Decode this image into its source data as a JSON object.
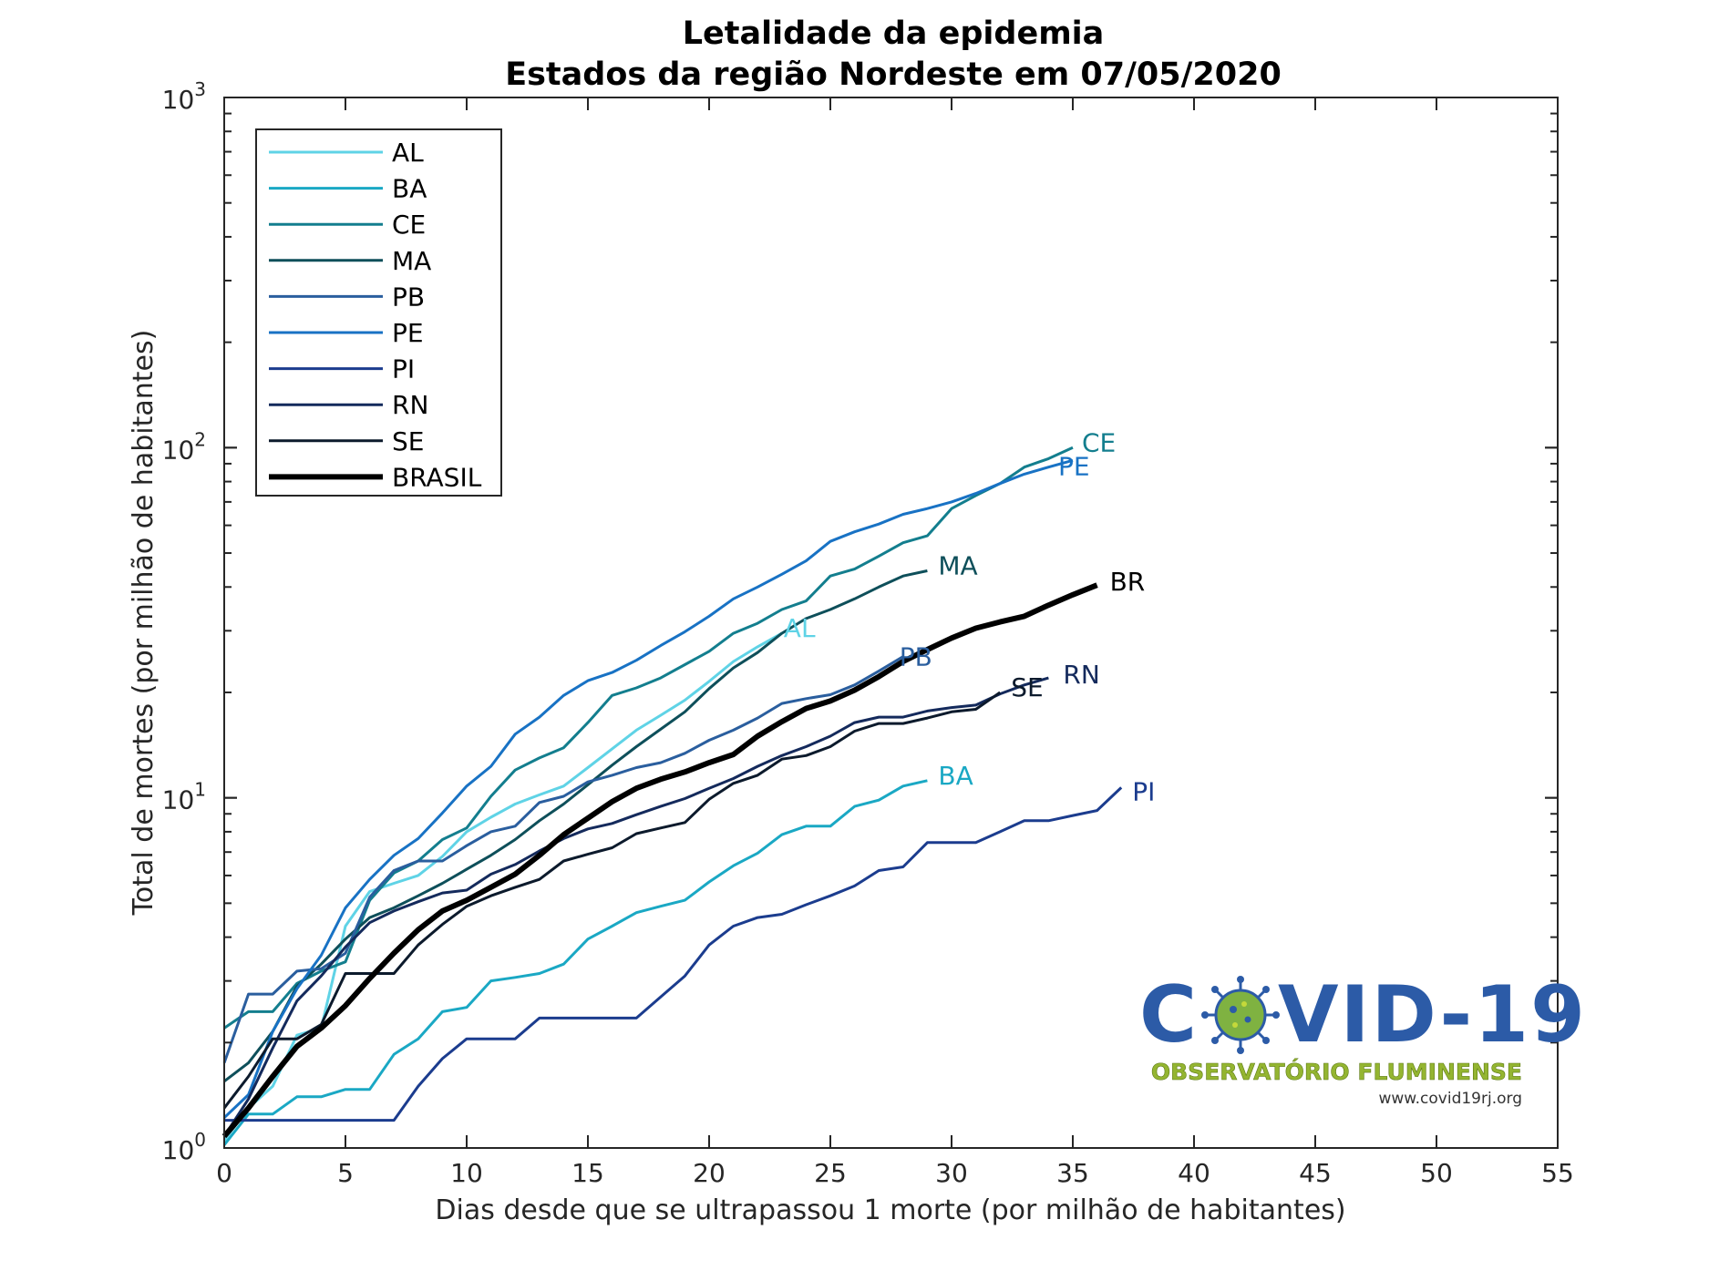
{
  "chart_data": {
    "type": "line",
    "title": "Letalidade da epidemia",
    "subtitle": "Estados da região Nordeste em 07/05/2020",
    "xlabel": "Dias desde que se ultrapassou 1 morte (por milhão de habitantes)",
    "ylabel": "Total de mortes (por milhão de habitantes)",
    "xlim": [
      0,
      55
    ],
    "ylim": [
      1,
      1000
    ],
    "yscale": "log",
    "xticks": [
      "0",
      "5",
      "10",
      "15",
      "20",
      "25",
      "30",
      "35",
      "40",
      "45",
      "50",
      "55"
    ],
    "yticks": [
      {
        "base": "10",
        "exp": "0"
      },
      {
        "base": "10",
        "exp": "1"
      },
      {
        "base": "10",
        "exp": "2"
      },
      {
        "base": "10",
        "exp": "3"
      }
    ],
    "grid": false,
    "legend_position": "top-left",
    "series": [
      {
        "name": "AL",
        "end_label": "AL",
        "color": "#5fd3e6",
        "width": 3,
        "x": [
          0,
          1,
          2,
          3,
          4,
          5,
          6,
          7,
          8,
          9,
          10,
          11,
          12,
          13,
          14,
          15,
          16,
          17,
          18,
          19,
          20,
          21,
          22,
          23
        ],
        "y": [
          1.05,
          1.3,
          1.5,
          2.1,
          2.2,
          4.3,
          5.4,
          5.7,
          6.0,
          6.8,
          8.0,
          8.8,
          9.6,
          10.2,
          10.8,
          12.2,
          13.8,
          15.6,
          17.2,
          19.0,
          21.5,
          24.5,
          27.0,
          29.5
        ]
      },
      {
        "name": "BA",
        "end_label": "BA",
        "color": "#1aa8c4",
        "width": 3,
        "x": [
          0,
          1,
          2,
          3,
          4,
          5,
          6,
          7,
          8,
          9,
          10,
          11,
          12,
          13,
          14,
          15,
          16,
          17,
          18,
          19,
          20,
          21,
          22,
          23,
          24,
          25,
          26,
          27,
          28,
          29
        ],
        "y": [
          1.02,
          1.25,
          1.25,
          1.4,
          1.4,
          1.47,
          1.47,
          1.85,
          2.05,
          2.45,
          2.52,
          3.0,
          3.07,
          3.15,
          3.35,
          3.95,
          4.3,
          4.7,
          4.9,
          5.1,
          5.75,
          6.4,
          6.95,
          7.85,
          8.3,
          8.3,
          9.45,
          9.85,
          10.8,
          11.2
        ]
      },
      {
        "name": "CE",
        "end_label": "CE",
        "color": "#137e8e",
        "width": 3,
        "x": [
          0,
          1,
          2,
          3,
          4,
          5,
          6,
          7,
          8,
          9,
          10,
          11,
          12,
          13,
          14,
          15,
          16,
          17,
          18,
          19,
          20,
          21,
          22,
          23,
          24,
          25,
          26,
          27,
          28,
          29,
          30,
          31,
          32,
          33,
          34,
          35
        ],
        "y": [
          2.2,
          2.45,
          2.45,
          2.95,
          3.2,
          3.4,
          5.1,
          6.1,
          6.6,
          7.6,
          8.2,
          10.1,
          12.0,
          13.0,
          13.9,
          16.4,
          19.6,
          20.6,
          22.0,
          24.0,
          26.2,
          29.5,
          31.5,
          34.5,
          36.5,
          43.0,
          45.0,
          49.0,
          53.5,
          56.0,
          67.0,
          73.0,
          79.0,
          88.0,
          93.0,
          100.0
        ]
      },
      {
        "name": "MA",
        "end_label": "MA",
        "color": "#0e4f5a",
        "width": 3,
        "x": [
          0,
          1,
          2,
          3,
          4,
          5,
          6,
          7,
          8,
          9,
          10,
          11,
          12,
          13,
          14,
          15,
          16,
          17,
          18,
          19,
          20,
          21,
          22,
          23,
          24,
          25,
          26,
          27,
          28,
          29
        ],
        "y": [
          1.55,
          1.75,
          2.15,
          2.9,
          3.35,
          3.95,
          4.55,
          4.85,
          5.25,
          5.7,
          6.25,
          6.85,
          7.6,
          8.6,
          9.6,
          10.9,
          12.4,
          14.0,
          15.7,
          17.6,
          20.5,
          23.5,
          26.0,
          29.5,
          32.5,
          34.5,
          37.0,
          40.0,
          43.0,
          44.5
        ]
      },
      {
        "name": "PB",
        "end_label": "PB",
        "color": "#2a5e9e",
        "width": 3,
        "x": [
          0,
          1,
          2,
          3,
          4,
          5,
          6,
          7,
          8,
          9,
          10,
          11,
          12,
          13,
          14,
          15,
          16,
          17,
          18,
          19,
          20,
          21,
          22,
          23,
          24,
          25,
          26,
          27,
          28
        ],
        "y": [
          1.75,
          2.75,
          2.75,
          3.2,
          3.25,
          3.6,
          5.2,
          6.2,
          6.6,
          6.6,
          7.3,
          8.0,
          8.3,
          9.7,
          10.1,
          11.1,
          11.6,
          12.2,
          12.6,
          13.4,
          14.6,
          15.6,
          16.9,
          18.6,
          19.2,
          19.7,
          21.0,
          23.0,
          25.3
        ]
      },
      {
        "name": "PE",
        "end_label": "PE",
        "color": "#1872c4",
        "width": 3,
        "x": [
          0,
          1,
          2,
          3,
          4,
          5,
          6,
          7,
          8,
          9,
          10,
          11,
          12,
          13,
          14,
          15,
          16,
          17,
          18,
          19,
          20,
          21,
          22,
          23,
          24,
          25,
          26,
          27,
          28,
          29,
          30,
          31,
          32,
          33,
          34,
          35
        ],
        "y": [
          1.22,
          1.42,
          2.15,
          2.85,
          3.55,
          4.85,
          5.85,
          6.85,
          7.65,
          9.05,
          10.8,
          12.3,
          15.2,
          17.0,
          19.6,
          21.6,
          22.8,
          24.7,
          27.2,
          29.8,
          33.0,
          37.0,
          40.0,
          43.5,
          47.5,
          54.0,
          57.5,
          60.5,
          64.5,
          67.0,
          70.0,
          74.0,
          79.0,
          84.0,
          88.0,
          92.0
        ]
      },
      {
        "name": "PI",
        "end_label": "PI",
        "color": "#1b3c8e",
        "width": 3,
        "x": [
          0,
          1,
          2,
          3,
          4,
          5,
          6,
          7,
          8,
          9,
          10,
          11,
          12,
          13,
          14,
          15,
          16,
          17,
          18,
          19,
          20,
          21,
          22,
          23,
          24,
          25,
          26,
          27,
          28,
          29,
          30,
          31,
          32,
          33,
          34,
          35,
          36,
          37
        ],
        "y": [
          1.2,
          1.2,
          1.2,
          1.2,
          1.2,
          1.2,
          1.2,
          1.2,
          1.5,
          1.8,
          2.05,
          2.05,
          2.05,
          2.35,
          2.35,
          2.35,
          2.35,
          2.35,
          2.7,
          3.1,
          3.8,
          4.3,
          4.55,
          4.65,
          4.95,
          5.25,
          5.6,
          6.2,
          6.35,
          7.45,
          7.45,
          7.45,
          8.0,
          8.6,
          8.6,
          8.9,
          9.2,
          10.7
        ]
      },
      {
        "name": "RN",
        "end_label": "RN",
        "color": "#142a5c",
        "width": 3,
        "x": [
          0,
          1,
          2,
          3,
          4,
          5,
          6,
          7,
          8,
          9,
          10,
          11,
          12,
          13,
          14,
          15,
          16,
          17,
          18,
          19,
          20,
          21,
          22,
          23,
          24,
          25,
          26,
          27,
          28,
          29,
          30,
          31,
          32,
          33,
          34
        ],
        "y": [
          1.08,
          1.38,
          1.93,
          2.63,
          3.1,
          3.75,
          4.4,
          4.75,
          5.05,
          5.35,
          5.45,
          6.05,
          6.45,
          7.05,
          7.65,
          8.15,
          8.45,
          8.95,
          9.45,
          9.95,
          10.65,
          11.35,
          12.3,
          13.2,
          14.0,
          15.0,
          16.4,
          17.0,
          17.0,
          17.7,
          18.1,
          18.4,
          19.8,
          21.0,
          22.0
        ]
      },
      {
        "name": "SE",
        "end_label": "SE",
        "color": "#0c1a2c",
        "width": 3,
        "x": [
          0,
          1,
          2,
          3,
          4,
          5,
          6,
          7,
          8,
          9,
          10,
          11,
          12,
          13,
          14,
          15,
          16,
          17,
          18,
          19,
          20,
          21,
          22,
          23,
          24,
          25,
          26,
          27,
          28,
          29,
          30,
          31,
          32
        ],
        "y": [
          1.3,
          1.6,
          2.05,
          2.05,
          2.25,
          3.15,
          3.15,
          3.15,
          3.8,
          4.35,
          4.9,
          5.25,
          5.55,
          5.85,
          6.6,
          6.9,
          7.2,
          7.9,
          8.2,
          8.5,
          9.9,
          11.0,
          11.6,
          12.9,
          13.2,
          14.0,
          15.5,
          16.3,
          16.3,
          16.9,
          17.6,
          17.9,
          20.0
        ]
      },
      {
        "name": "BRASIL",
        "end_label": "BR",
        "color": "#000000",
        "width": 6,
        "x": [
          0,
          1,
          2,
          3,
          4,
          5,
          6,
          7,
          8,
          9,
          10,
          11,
          12,
          13,
          14,
          15,
          16,
          17,
          18,
          19,
          20,
          21,
          22,
          23,
          24,
          25,
          26,
          27,
          28,
          29,
          30,
          31,
          32,
          33,
          34,
          35,
          36
        ],
        "y": [
          1.08,
          1.3,
          1.6,
          1.95,
          2.2,
          2.55,
          3.05,
          3.6,
          4.2,
          4.75,
          5.1,
          5.55,
          6.05,
          6.85,
          7.85,
          8.75,
          9.75,
          10.65,
          11.3,
          11.85,
          12.6,
          13.3,
          15.0,
          16.5,
          18.0,
          18.9,
          20.3,
          22.2,
          24.5,
          26.5,
          28.6,
          30.5,
          31.8,
          33.0,
          35.5,
          38.0,
          40.5
        ]
      }
    ]
  },
  "logo": {
    "title_part1": "C",
    "title_part2": "VID-19",
    "subtitle": "OBSERVATÓRIO FLUMINENSE",
    "url": "www.covid19rj.org",
    "color_blue": "#2c5ba7",
    "color_green": "#94b531"
  }
}
